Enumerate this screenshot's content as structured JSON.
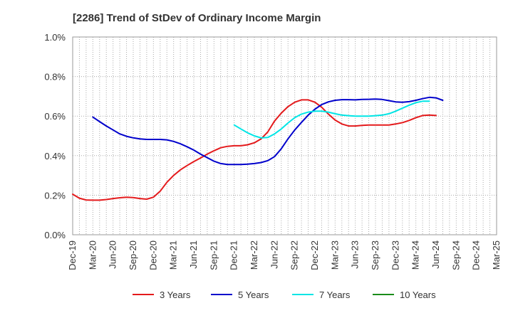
{
  "chart_data": {
    "type": "line",
    "title": "[2286]  Trend of StDev of Ordinary Income Margin",
    "xlabel": "",
    "ylabel": "",
    "x_ticks": [
      "Dec-19",
      "Mar-20",
      "Jun-20",
      "Sep-20",
      "Dec-20",
      "Mar-21",
      "Jun-21",
      "Sep-21",
      "Dec-21",
      "Mar-22",
      "Jun-22",
      "Sep-22",
      "Dec-22",
      "Mar-23",
      "Jun-23",
      "Sep-23",
      "Dec-23",
      "Mar-24",
      "Jun-24",
      "Sep-24",
      "Dec-24",
      "Mar-25"
    ],
    "y_ticks": [
      "0.0%",
      "0.2%",
      "0.4%",
      "0.6%",
      "0.8%",
      "1.0%"
    ],
    "ylim": [
      0,
      1.0
    ],
    "y_unit": "%",
    "grid": true,
    "legend_position": "bottom",
    "series": [
      {
        "name": "3 Years",
        "color": "#e41a1c",
        "start_index": 0,
        "values": [
          0.205,
          0.185,
          0.176,
          0.175,
          0.175,
          0.178,
          0.183,
          0.187,
          0.19,
          0.188,
          0.183,
          0.18,
          0.19,
          0.22,
          0.265,
          0.3,
          0.328,
          0.35,
          0.37,
          0.388,
          0.408,
          0.425,
          0.44,
          0.447,
          0.45,
          0.45,
          0.455,
          0.465,
          0.485,
          0.52,
          0.575,
          0.615,
          0.648,
          0.67,
          0.682,
          0.682,
          0.67,
          0.645,
          0.61,
          0.58,
          0.56,
          0.55,
          0.55,
          0.553,
          0.555,
          0.555,
          0.555,
          0.555,
          0.56,
          0.567,
          0.578,
          0.592,
          0.603,
          0.605,
          0.603
        ]
      },
      {
        "name": "5 Years",
        "color": "#0000cc",
        "start_index": 3,
        "values": [
          0.595,
          0.572,
          0.55,
          0.53,
          0.51,
          0.498,
          0.49,
          0.485,
          0.482,
          0.482,
          0.482,
          0.48,
          0.472,
          0.46,
          0.445,
          0.428,
          0.408,
          0.39,
          0.372,
          0.36,
          0.355,
          0.355,
          0.355,
          0.357,
          0.36,
          0.365,
          0.375,
          0.395,
          0.435,
          0.485,
          0.53,
          0.568,
          0.605,
          0.635,
          0.658,
          0.672,
          0.68,
          0.683,
          0.683,
          0.682,
          0.684,
          0.685,
          0.686,
          0.684,
          0.678,
          0.672,
          0.67,
          0.673,
          0.68,
          0.688,
          0.695,
          0.692,
          0.68
        ]
      },
      {
        "name": "7 Years",
        "color": "#00e5e5",
        "start_index": 24,
        "values": [
          0.555,
          0.535,
          0.515,
          0.5,
          0.49,
          0.492,
          0.51,
          0.535,
          0.565,
          0.592,
          0.61,
          0.62,
          0.625,
          0.625,
          0.62,
          0.612,
          0.605,
          0.602,
          0.6,
          0.6,
          0.6,
          0.602,
          0.605,
          0.612,
          0.625,
          0.64,
          0.655,
          0.668,
          0.675,
          0.675
        ]
      },
      {
        "name": "10 Years",
        "color": "#1a8c1a",
        "start_index": 0,
        "values": []
      }
    ]
  }
}
